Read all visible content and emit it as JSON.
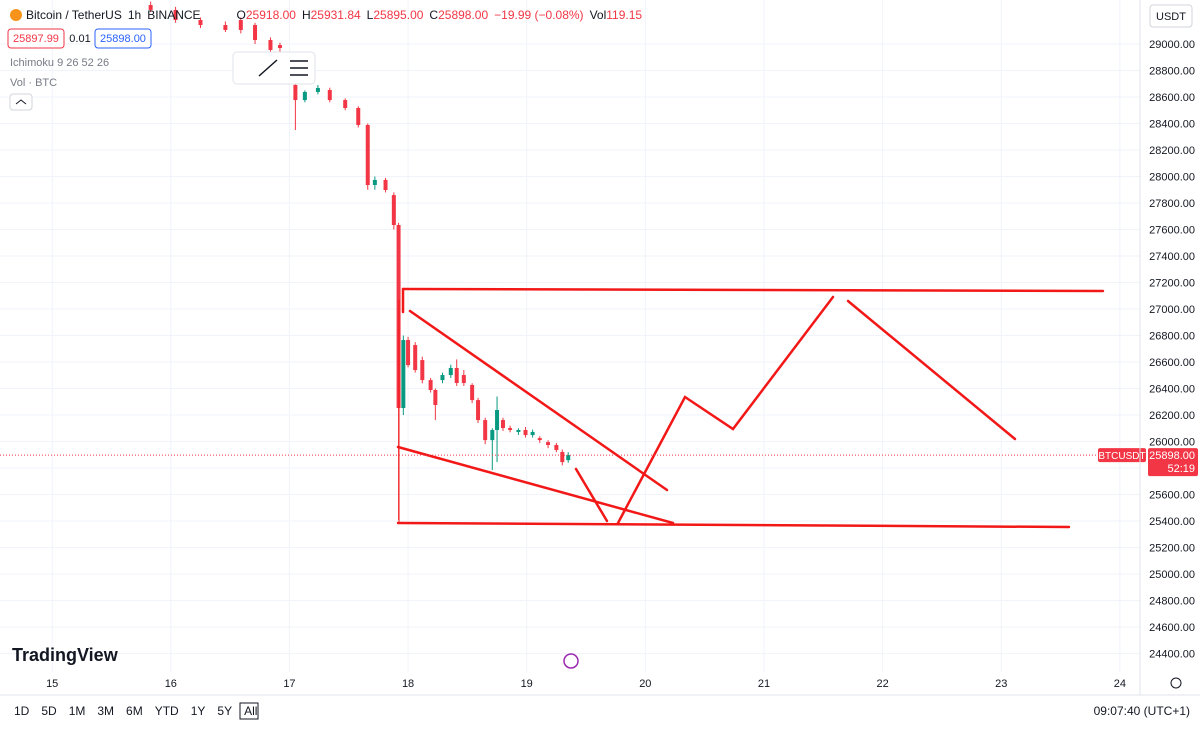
{
  "header": {
    "symbol": "Bitcoin / TetherUS",
    "interval": "1h",
    "exchange": "BINANCE",
    "ohlc": [
      {
        "label": "O",
        "value": "25918.00"
      },
      {
        "label": "H",
        "value": "25931.84"
      },
      {
        "label": "L",
        "value": "25895.00"
      },
      {
        "label": "C",
        "value": "25898.00"
      }
    ],
    "change": "−19.99 (−0.08%)",
    "volume": {
      "label": "Vol",
      "value": "119.15"
    },
    "sell": "25897.99",
    "spread": "0.01",
    "buy": "25898.00",
    "indicators": [
      "Ichimoku 9 26 52 26",
      "Vol · BTC"
    ]
  },
  "currency": "USDT",
  "brand": "TradingView",
  "timeframes": [
    "1D",
    "5D",
    "1M",
    "3M",
    "6M",
    "YTD",
    "1Y",
    "5Y",
    "All"
  ],
  "clock": "09:07:40 (UTC+1)",
  "chart_data": {
    "type": "candlestick",
    "up_color": "#089981",
    "down_color": "#f23645",
    "grid": true,
    "symbol_tag": "BTCUSDT",
    "countdown": "52:19",
    "last_price": {
      "value": 25898,
      "label": "25898.00"
    },
    "xlim": [
      14.56,
      24.17
    ],
    "xticks": [
      15,
      16,
      17,
      18,
      19,
      20,
      21,
      22,
      23,
      24
    ],
    "ylim": [
      24261,
      29332
    ],
    "yticks": [
      {
        "value": 24400,
        "label": "24400.00"
      },
      {
        "value": 24600,
        "label": "24600.00"
      },
      {
        "value": 24800,
        "label": "24800.00"
      },
      {
        "value": 25000,
        "label": "25000.00"
      },
      {
        "value": 25200,
        "label": "25200.00"
      },
      {
        "value": 25400,
        "label": "25400.00"
      },
      {
        "value": 25600,
        "label": "25600.00"
      },
      {
        "value": 25800,
        "label": "25800.00"
      },
      {
        "value": 26000,
        "label": "26000.00"
      },
      {
        "value": 26200,
        "label": "26200.00"
      },
      {
        "value": 26400,
        "label": "26400.00"
      },
      {
        "value": 26600,
        "label": "26600.00"
      },
      {
        "value": 26800,
        "label": "26800.00"
      },
      {
        "value": 27000,
        "label": "27000.00"
      },
      {
        "value": 27200,
        "label": "27200.00"
      },
      {
        "value": 27400,
        "label": "27400.00"
      },
      {
        "value": 27600,
        "label": "27600.00"
      },
      {
        "value": 27800,
        "label": "27800.00"
      },
      {
        "value": 28000,
        "label": "28000.00"
      },
      {
        "value": 28200,
        "label": "28200.00"
      },
      {
        "value": 28400,
        "label": "28400.00"
      },
      {
        "value": 28600,
        "label": "28600.00"
      },
      {
        "value": 28800,
        "label": "28800.00"
      },
      {
        "value": 29000,
        "label": "29000.00"
      }
    ],
    "x": [
      15.83,
      16.04,
      16.25,
      16.46,
      16.59,
      16.71,
      16.84,
      16.92,
      17.05,
      17.13,
      17.24,
      17.34,
      17.47,
      17.58,
      17.66,
      17.72,
      17.81,
      17.88,
      17.92,
      17.96,
      18.0,
      18.06,
      18.12,
      18.19,
      18.23,
      18.29,
      18.36,
      18.41,
      18.47,
      18.54,
      18.59,
      18.65,
      18.71,
      18.75,
      18.8,
      18.86,
      18.93,
      18.99,
      19.05,
      19.11,
      19.18,
      19.25,
      19.3,
      19.35
    ],
    "open": [
      29294,
      29257,
      29181,
      29143,
      29181,
      29143,
      29030,
      28992,
      28691,
      28577,
      28638,
      28653,
      28577,
      28517,
      28389,
      27936,
      27974,
      27860,
      27634,
      26253,
      26766,
      26728,
      26615,
      26464,
      26389,
      26464,
      26502,
      26555,
      26502,
      26427,
      26313,
      26162,
      26011,
      26087,
      26162,
      26102,
      26072,
      26087,
      26049,
      26026,
      25996,
      25974,
      25921,
      25860
    ],
    "high": [
      29320,
      29280,
      29200,
      29170,
      29200,
      29160,
      29050,
      29010,
      28710,
      28650,
      28690,
      28670,
      28590,
      28530,
      28400,
      28000,
      27990,
      27880,
      27650,
      26800,
      26790,
      26750,
      26640,
      26480,
      26400,
      26520,
      26580,
      26620,
      26540,
      26440,
      26330,
      26180,
      26100,
      26340,
      26180,
      26120,
      26100,
      26110,
      26090,
      26040,
      26010,
      25990,
      25940,
      25920
    ],
    "low": [
      29240,
      29160,
      29120,
      29090,
      29080,
      29000,
      28930,
      28940,
      28351,
      28560,
      28620,
      28560,
      28500,
      28370,
      27900,
      27900,
      27880,
      27600,
      25408,
      26200,
      26560,
      26520,
      26440,
      26370,
      26162,
      26440,
      26480,
      26420,
      26420,
      26290,
      26140,
      25980,
      25785,
      25845,
      26080,
      26070,
      26050,
      26030,
      26030,
      25990,
      25950,
      25920,
      25820,
      25840
    ],
    "close": [
      29257,
      29181,
      29143,
      29106,
      29106,
      29030,
      28955,
      28970,
      28577,
      28638,
      28668,
      28577,
      28517,
      28389,
      27936,
      27974,
      27898,
      27634,
      26253,
      26766,
      26577,
      26540,
      26464,
      26389,
      26276,
      26502,
      26555,
      26442,
      26442,
      26313,
      26162,
      26011,
      26087,
      26238,
      26102,
      26087,
      26087,
      26049,
      26072,
      26011,
      25974,
      25936,
      25845,
      25898
    ]
  }
}
